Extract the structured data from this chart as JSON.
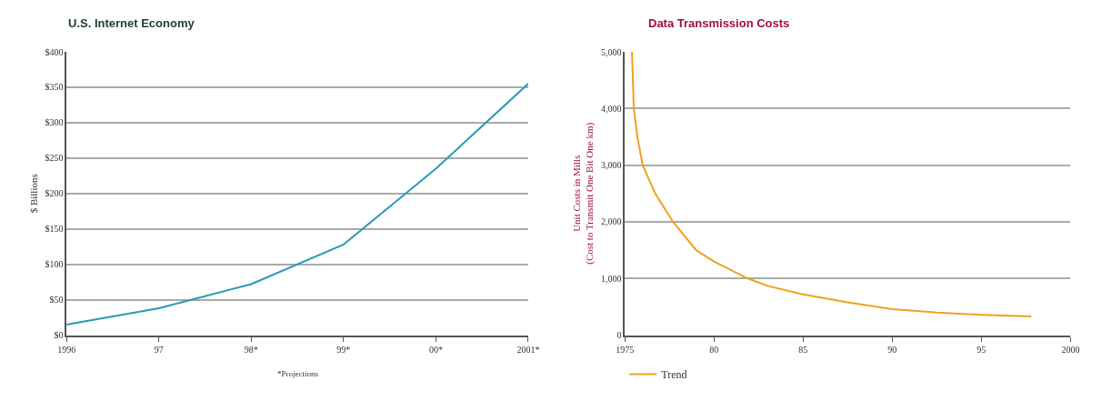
{
  "chart_data": [
    {
      "type": "line",
      "title": "U.S. Internet Economy",
      "ylabel": "$ Billions",
      "categories": [
        "1996",
        "97",
        "98*",
        "99*",
        "00*",
        "2001*"
      ],
      "series": [
        {
          "color": "#2a9ab4",
          "values": [
            15,
            38,
            72,
            128,
            235,
            355
          ]
        }
      ],
      "ylim": [
        0,
        400
      ],
      "yticks": [
        {
          "value": 0,
          "label": "$0"
        },
        {
          "value": 50,
          "label": "$50"
        },
        {
          "value": 100,
          "label": "$100"
        },
        {
          "value": 150,
          "label": "$150"
        },
        {
          "value": 200,
          "label": "$200"
        },
        {
          "value": 250,
          "label": "$250"
        },
        {
          "value": 300,
          "label": "$300"
        },
        {
          "value": 350,
          "label": "$350"
        },
        {
          "value": 400,
          "label": "$400"
        }
      ],
      "annotations": [
        "*Projections"
      ],
      "grid": "y",
      "legend": false,
      "marker": "none",
      "line_style": "solid"
    },
    {
      "type": "line",
      "title": "Data Transmission Costs",
      "ylabel": "Unit Costs in Mills\n(Cost to Transmit One Bit One km)",
      "series": [
        {
          "name": "Trend",
          "color": "#f0a020",
          "x": [
            1975.4,
            1975.5,
            1975.7,
            1976.0,
            1976.7,
            1977.7,
            1979.0,
            1980.0,
            1981.9,
            1983.0,
            1985.0,
            1987.5,
            1990.0,
            1992.5,
            1995.0,
            1997.8
          ],
          "values": [
            5000,
            4000,
            3500,
            3000,
            2500,
            2000,
            1500,
            1300,
            1000,
            870,
            720,
            580,
            460,
            400,
            360,
            330
          ]
        }
      ],
      "xlim": [
        1975,
        2000
      ],
      "xticks": [
        1975,
        {
          "value": 1980,
          "label": "80"
        },
        {
          "value": 1985,
          "label": "85"
        },
        {
          "value": 1990,
          "label": "90"
        },
        {
          "value": 1995,
          "label": "95"
        },
        2000
      ],
      "ylim": [
        0,
        5000
      ],
      "yticks": [
        0,
        {
          "value": 1000,
          "label": "1,000"
        },
        {
          "value": 2000,
          "label": "2,000"
        },
        {
          "value": 3000,
          "label": "3,000"
        },
        {
          "value": 4000,
          "label": "4,000"
        },
        {
          "value": 5000,
          "label": "5,000"
        }
      ],
      "grid": "y",
      "legend": "bottom left",
      "marker": "none",
      "line_style": "solid"
    }
  ]
}
